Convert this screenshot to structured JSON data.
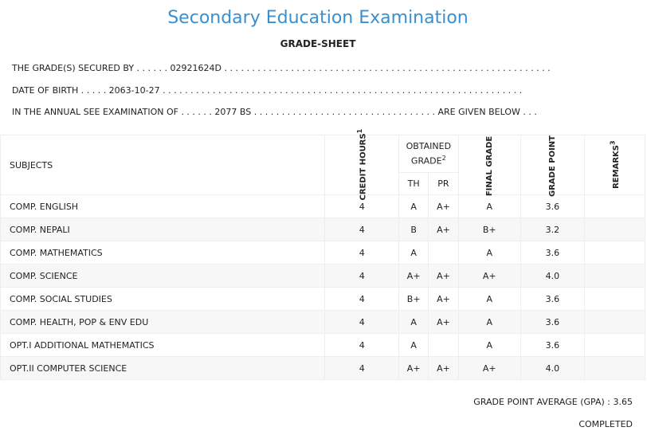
{
  "header": {
    "title": "Secondary Education Examination",
    "subtitle": "GRADE-SHEET"
  },
  "info": {
    "line1": "THE GRADE(S) SECURED BY . . . . . . 02921624D . . . . . . . . . . . . . . . . . . . . . . . . . . . . . . . . . . . . . . . . . . . . . . . . . . . . . . . . . . .",
    "line2": "DATE OF BIRTH . . . . . 2063-10-27 . . . . . . . . . . . . . . . . . . . . . . . . . . . . . . . . . . . . . . . . . . . . . . . . . . . . . . . . . . . . . . . . .",
    "line3": "IN THE ANNUAL SEE EXAMINATION OF . . . . . . 2077 BS . . . . . . . . . . . . . . . . . . . . . . . . . . . . . . . . . ARE GIVEN BELOW . . ."
  },
  "table": {
    "col_subjects": "SUBJECTS",
    "col_credit": "CREDIT HOURS",
    "col_credit_sup": "1",
    "col_obtained": "OBTAINED GRADE",
    "col_obtained_sup": "2",
    "col_th": "TH",
    "col_pr": "PR",
    "col_final": "FINAL GRADE",
    "col_gp": "GRADE POINT",
    "col_remarks": "REMARKS",
    "col_remarks_sup": "3",
    "rows": [
      {
        "subject": "COMP. ENGLISH",
        "credit": "4",
        "th": "A",
        "pr": "A+",
        "final": "A",
        "gp": "3.6",
        "remarks": ""
      },
      {
        "subject": "COMP. NEPALI",
        "credit": "4",
        "th": "B",
        "pr": "A+",
        "final": "B+",
        "gp": "3.2",
        "remarks": ""
      },
      {
        "subject": "COMP. MATHEMATICS",
        "credit": "4",
        "th": "A",
        "pr": "",
        "final": "A",
        "gp": "3.6",
        "remarks": ""
      },
      {
        "subject": "COMP. SCIENCE",
        "credit": "4",
        "th": "A+",
        "pr": "A+",
        "final": "A+",
        "gp": "4.0",
        "remarks": ""
      },
      {
        "subject": "COMP. SOCIAL STUDIES",
        "credit": "4",
        "th": "B+",
        "pr": "A+",
        "final": "A",
        "gp": "3.6",
        "remarks": ""
      },
      {
        "subject": "COMP. HEALTH, POP & ENV EDU",
        "credit": "4",
        "th": "A",
        "pr": "A+",
        "final": "A",
        "gp": "3.6",
        "remarks": ""
      },
      {
        "subject": "OPT.I ADDITIONAL MATHEMATICS",
        "credit": "4",
        "th": "A",
        "pr": "",
        "final": "A",
        "gp": "3.6",
        "remarks": ""
      },
      {
        "subject": "OPT.II COMPUTER SCIENCE",
        "credit": "4",
        "th": "A+",
        "pr": "A+",
        "final": "A+",
        "gp": "4.0",
        "remarks": ""
      }
    ]
  },
  "footer": {
    "gpa": "GRADE POINT AVERAGE (GPA) : 3.65",
    "status": "COMPLETED"
  }
}
